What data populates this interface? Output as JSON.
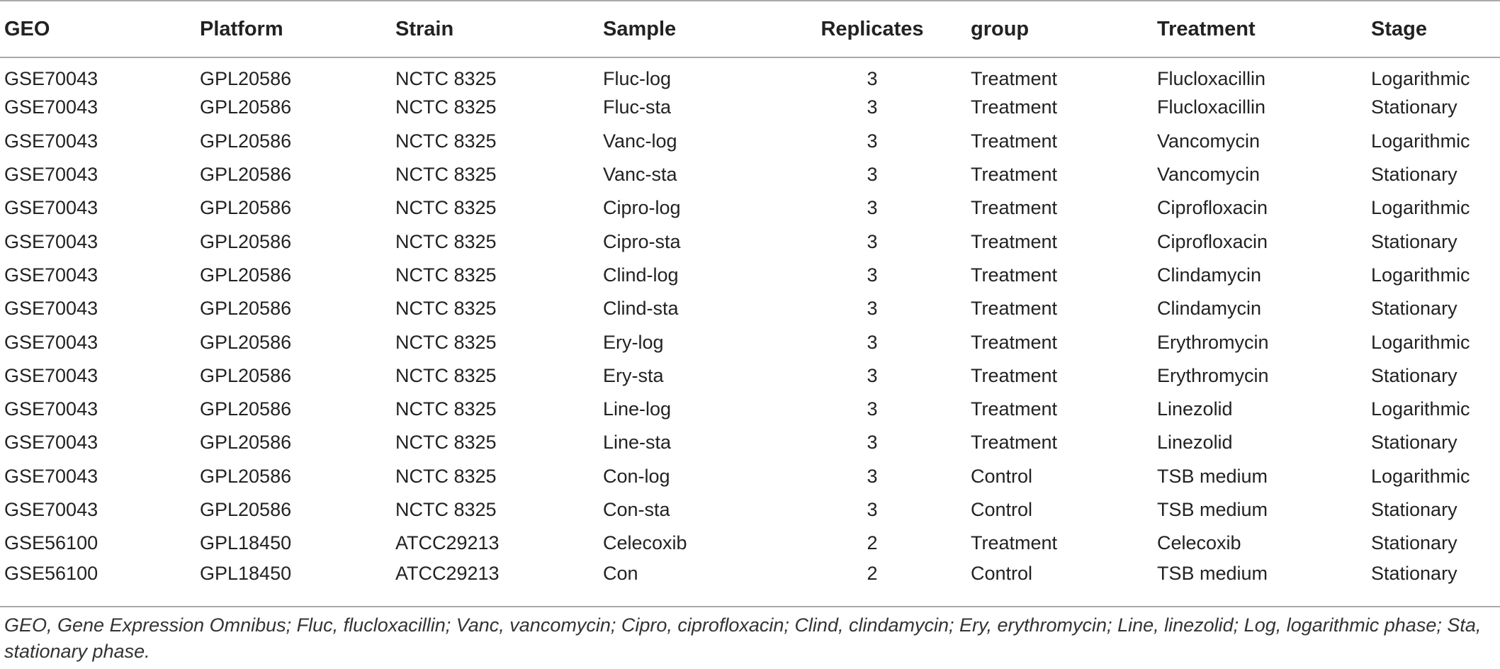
{
  "table": {
    "headers": [
      "GEO",
      "Platform",
      "Strain",
      "Sample",
      "Replicates",
      "group",
      "Treatment",
      "Stage"
    ],
    "rows": [
      [
        "GSE70043",
        "GPL20586",
        "NCTC 8325",
        "Fluc-log",
        "3",
        "Treatment",
        "Flucloxacillin",
        "Logarithmic"
      ],
      [
        "GSE70043",
        "GPL20586",
        "NCTC 8325",
        "Fluc-sta",
        "3",
        "Treatment",
        "Flucloxacillin",
        "Stationary"
      ],
      [
        "GSE70043",
        "GPL20586",
        "NCTC 8325",
        "Vanc-log",
        "3",
        "Treatment",
        "Vancomycin",
        "Logarithmic"
      ],
      [
        "GSE70043",
        "GPL20586",
        "NCTC 8325",
        "Vanc-sta",
        "3",
        "Treatment",
        "Vancomycin",
        "Stationary"
      ],
      [
        "GSE70043",
        "GPL20586",
        "NCTC 8325",
        "Cipro-log",
        "3",
        "Treatment",
        "Ciprofloxacin",
        "Logarithmic"
      ],
      [
        "GSE70043",
        "GPL20586",
        "NCTC 8325",
        "Cipro-sta",
        "3",
        "Treatment",
        "Ciprofloxacin",
        "Stationary"
      ],
      [
        "GSE70043",
        "GPL20586",
        "NCTC 8325",
        "Clind-log",
        "3",
        "Treatment",
        "Clindamycin",
        "Logarithmic"
      ],
      [
        "GSE70043",
        "GPL20586",
        "NCTC 8325",
        "Clind-sta",
        "3",
        "Treatment",
        "Clindamycin",
        "Stationary"
      ],
      [
        "GSE70043",
        "GPL20586",
        "NCTC 8325",
        "Ery-log",
        "3",
        "Treatment",
        "Erythromycin",
        "Logarithmic"
      ],
      [
        "GSE70043",
        "GPL20586",
        "NCTC 8325",
        "Ery-sta",
        "3",
        "Treatment",
        "Erythromycin",
        "Stationary"
      ],
      [
        "GSE70043",
        "GPL20586",
        "NCTC 8325",
        "Line-log",
        "3",
        "Treatment",
        "Linezolid",
        "Logarithmic"
      ],
      [
        "GSE70043",
        "GPL20586",
        "NCTC 8325",
        "Line-sta",
        "3",
        "Treatment",
        "Linezolid",
        "Stationary"
      ],
      [
        "GSE70043",
        "GPL20586",
        "NCTC 8325",
        "Con-log",
        "3",
        "Control",
        "TSB medium",
        "Logarithmic"
      ],
      [
        "GSE70043",
        "GPL20586",
        "NCTC 8325",
        "Con-sta",
        "3",
        "Control",
        "TSB medium",
        "Stationary"
      ],
      [
        "GSE56100",
        "GPL18450",
        "ATCC29213",
        "Celecoxib",
        "2",
        "Treatment",
        "Celecoxib",
        "Stationary"
      ],
      [
        "GSE56100",
        "GPL18450",
        "ATCC29213",
        "Con",
        "2",
        "Control",
        "TSB medium",
        "Stationary"
      ]
    ]
  },
  "footnote": "GEO, Gene Expression Omnibus; Fluc, flucloxacillin; Vanc, vancomycin; Cipro, ciprofloxacin; Clind, clindamycin; Ery, erythromycin; Line, linezolid; Log, logarithmic phase; Sta, stationary phase."
}
